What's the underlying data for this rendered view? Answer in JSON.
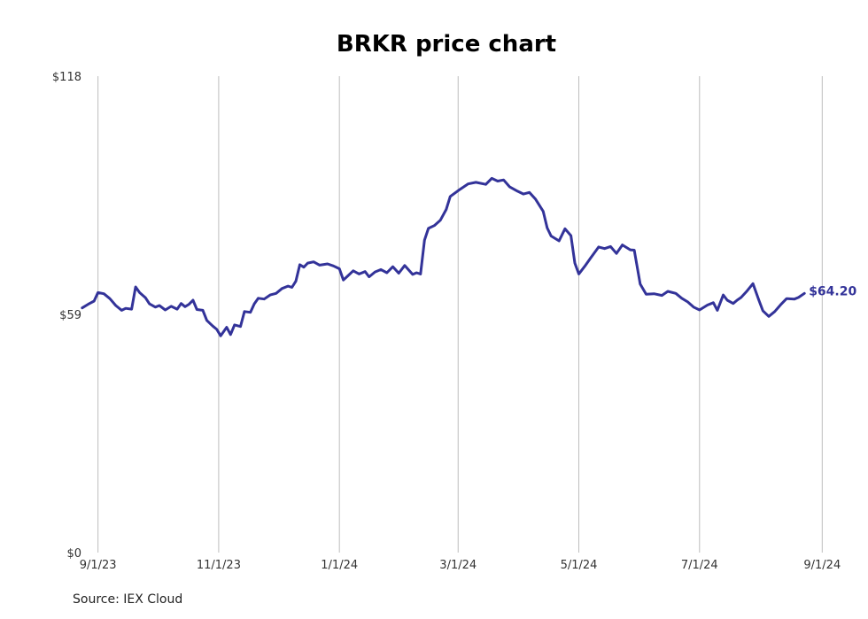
{
  "source_note": "Source: IEX Cloud",
  "chart_data": {
    "type": "line",
    "title": "BRKR price chart",
    "xlabel": "",
    "ylabel": "",
    "x_ticks": [
      "9/1/23",
      "11/1/23",
      "1/1/24",
      "3/1/24",
      "5/1/24",
      "7/1/24",
      "9/1/24"
    ],
    "y_ticks": [
      "$0",
      "$59",
      "$118"
    ],
    "ylim": [
      0,
      118
    ],
    "xlim": [
      "2023-08-25",
      "2024-09-04"
    ],
    "grid": "vertical",
    "last_value_label": "$64.20",
    "line_color": "#333399",
    "series": [
      {
        "points": [
          [
            "2023-08-24",
            60.6
          ],
          [
            "2023-08-27",
            61.5
          ],
          [
            "2023-08-30",
            62.3
          ],
          [
            "2023-09-01",
            64.4
          ],
          [
            "2023-09-04",
            64.1
          ],
          [
            "2023-09-07",
            62.9
          ],
          [
            "2023-09-10",
            61.2
          ],
          [
            "2023-09-13",
            60.0
          ],
          [
            "2023-09-15",
            60.5
          ],
          [
            "2023-09-18",
            60.3
          ],
          [
            "2023-09-20",
            65.8
          ],
          [
            "2023-09-22",
            64.4
          ],
          [
            "2023-09-25",
            63.1
          ],
          [
            "2023-09-27",
            61.6
          ],
          [
            "2023-09-30",
            60.8
          ],
          [
            "2023-10-02",
            61.2
          ],
          [
            "2023-10-05",
            60.1
          ],
          [
            "2023-10-08",
            61.0
          ],
          [
            "2023-10-11",
            60.3
          ],
          [
            "2023-10-13",
            61.7
          ],
          [
            "2023-10-15",
            60.9
          ],
          [
            "2023-10-17",
            61.5
          ],
          [
            "2023-10-19",
            62.5
          ],
          [
            "2023-10-21",
            60.2
          ],
          [
            "2023-10-24",
            60.0
          ],
          [
            "2023-10-26",
            57.5
          ],
          [
            "2023-10-29",
            56.1
          ],
          [
            "2023-10-31",
            55.3
          ],
          [
            "2023-11-02",
            53.7
          ],
          [
            "2023-11-05",
            55.8
          ],
          [
            "2023-11-07",
            54.0
          ],
          [
            "2023-11-09",
            56.4
          ],
          [
            "2023-11-12",
            56.0
          ],
          [
            "2023-11-14",
            59.7
          ],
          [
            "2023-11-17",
            59.5
          ],
          [
            "2023-11-19",
            61.6
          ],
          [
            "2023-11-21",
            63.0
          ],
          [
            "2023-11-24",
            62.8
          ],
          [
            "2023-11-27",
            63.8
          ],
          [
            "2023-11-30",
            64.2
          ],
          [
            "2023-12-03",
            65.4
          ],
          [
            "2023-12-06",
            66.0
          ],
          [
            "2023-12-08",
            65.7
          ],
          [
            "2023-12-10",
            67.2
          ],
          [
            "2023-12-12",
            71.3
          ],
          [
            "2023-12-14",
            70.7
          ],
          [
            "2023-12-16",
            71.7
          ],
          [
            "2023-12-19",
            72.0
          ],
          [
            "2023-12-22",
            71.2
          ],
          [
            "2023-12-26",
            71.5
          ],
          [
            "2023-12-29",
            71.0
          ],
          [
            "2024-01-01",
            70.3
          ],
          [
            "2024-01-03",
            67.5
          ],
          [
            "2024-01-05",
            68.4
          ],
          [
            "2024-01-08",
            69.8
          ],
          [
            "2024-01-11",
            69.0
          ],
          [
            "2024-01-14",
            69.6
          ],
          [
            "2024-01-16",
            68.3
          ],
          [
            "2024-01-19",
            69.5
          ],
          [
            "2024-01-22",
            70.1
          ],
          [
            "2024-01-25",
            69.3
          ],
          [
            "2024-01-28",
            70.8
          ],
          [
            "2024-01-31",
            69.2
          ],
          [
            "2024-02-03",
            71.1
          ],
          [
            "2024-02-07",
            68.9
          ],
          [
            "2024-02-09",
            69.3
          ],
          [
            "2024-02-11",
            69.0
          ],
          [
            "2024-02-13",
            77.4
          ],
          [
            "2024-02-15",
            80.3
          ],
          [
            "2024-02-18",
            81.0
          ],
          [
            "2024-02-21",
            82.3
          ],
          [
            "2024-02-24",
            85.0
          ],
          [
            "2024-02-26",
            88.2
          ],
          [
            "2024-03-02",
            90.0
          ],
          [
            "2024-03-06",
            91.3
          ],
          [
            "2024-03-10",
            91.7
          ],
          [
            "2024-03-15",
            91.2
          ],
          [
            "2024-03-18",
            92.7
          ],
          [
            "2024-03-21",
            92.0
          ],
          [
            "2024-03-24",
            92.3
          ],
          [
            "2024-03-27",
            90.6
          ],
          [
            "2024-03-31",
            89.5
          ],
          [
            "2024-04-03",
            88.8
          ],
          [
            "2024-04-06",
            89.2
          ],
          [
            "2024-04-09",
            87.6
          ],
          [
            "2024-04-13",
            84.5
          ],
          [
            "2024-04-15",
            80.4
          ],
          [
            "2024-04-17",
            78.4
          ],
          [
            "2024-04-21",
            77.2
          ],
          [
            "2024-04-24",
            80.2
          ],
          [
            "2024-04-27",
            78.5
          ],
          [
            "2024-04-29",
            71.7
          ],
          [
            "2024-05-01",
            69.0
          ],
          [
            "2024-05-04",
            70.9
          ],
          [
            "2024-05-07",
            73.0
          ],
          [
            "2024-05-11",
            75.7
          ],
          [
            "2024-05-14",
            75.3
          ],
          [
            "2024-05-17",
            75.8
          ],
          [
            "2024-05-20",
            74.1
          ],
          [
            "2024-05-23",
            76.2
          ],
          [
            "2024-05-27",
            75.0
          ],
          [
            "2024-05-29",
            74.9
          ],
          [
            "2024-06-01",
            66.5
          ],
          [
            "2024-06-04",
            64.0
          ],
          [
            "2024-06-08",
            64.1
          ],
          [
            "2024-06-12",
            63.7
          ],
          [
            "2024-06-15",
            64.7
          ],
          [
            "2024-06-19",
            64.2
          ],
          [
            "2024-06-22",
            63.0
          ],
          [
            "2024-06-25",
            62.1
          ],
          [
            "2024-06-28",
            60.8
          ],
          [
            "2024-07-01",
            60.1
          ],
          [
            "2024-07-05",
            61.3
          ],
          [
            "2024-07-08",
            61.9
          ],
          [
            "2024-07-10",
            60.0
          ],
          [
            "2024-07-13",
            63.8
          ],
          [
            "2024-07-15",
            62.5
          ],
          [
            "2024-07-18",
            61.7
          ],
          [
            "2024-07-20",
            62.5
          ],
          [
            "2024-07-22",
            63.2
          ],
          [
            "2024-07-25",
            64.8
          ],
          [
            "2024-07-28",
            66.6
          ],
          [
            "2024-07-31",
            62.5
          ],
          [
            "2024-08-02",
            59.9
          ],
          [
            "2024-08-05",
            58.5
          ],
          [
            "2024-08-08",
            59.7
          ],
          [
            "2024-08-11",
            61.4
          ],
          [
            "2024-08-14",
            62.9
          ],
          [
            "2024-08-18",
            62.8
          ],
          [
            "2024-08-20",
            63.2
          ],
          [
            "2024-08-23",
            64.2
          ]
        ]
      }
    ]
  }
}
